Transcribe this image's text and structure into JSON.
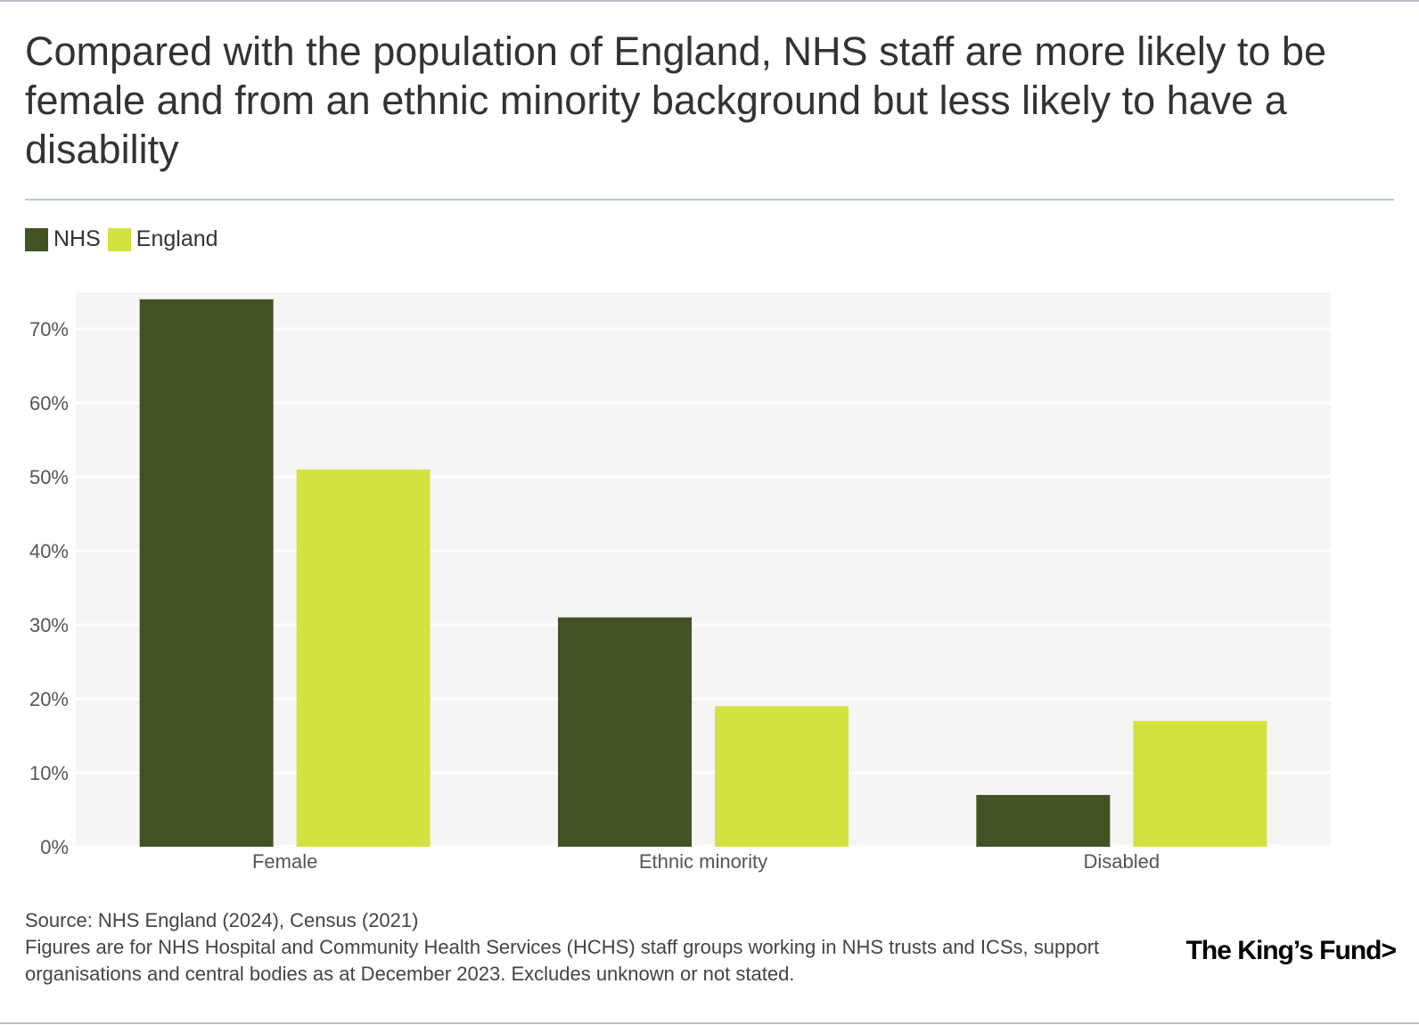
{
  "title": "Compared with the population of England, NHS staff are more likely to be female and from an ethnic minority background but less likely to have a disability",
  "legend": [
    {
      "label": "NHS",
      "color": "#435225"
    },
    {
      "label": "England",
      "color": "#d2e33f"
    }
  ],
  "chart_data": {
    "type": "bar",
    "title": "Compared with the population of England, NHS staff are more likely to be female and from an ethnic minority background but less likely to have a disability",
    "categories": [
      "Female",
      "Ethnic minority",
      "Disabled"
    ],
    "series": [
      {
        "name": "NHS",
        "values": [
          74,
          31,
          7
        ],
        "color": "#435225"
      },
      {
        "name": "England",
        "values": [
          51,
          19,
          17
        ],
        "color": "#d2e33f"
      }
    ],
    "y_ticks": [
      0,
      10,
      20,
      30,
      40,
      50,
      60,
      70
    ],
    "y_tick_labels": [
      "0%",
      "10%",
      "20%",
      "30%",
      "40%",
      "50%",
      "60%",
      "70%"
    ],
    "ylim": [
      0,
      75
    ],
    "xlabel": "",
    "ylabel": "",
    "grid": true,
    "legend_position": "top-left"
  },
  "footer": {
    "source": "Source: NHS England (2024), Census (2021)",
    "notes": "Figures are for NHS Hospital and Community Health Services (HCHS) staff groups working in NHS trusts and ICSs, support organisations and central bodies as at December 2023. Excludes unknown or not stated.",
    "logo_text": "The King’s Fund>"
  }
}
